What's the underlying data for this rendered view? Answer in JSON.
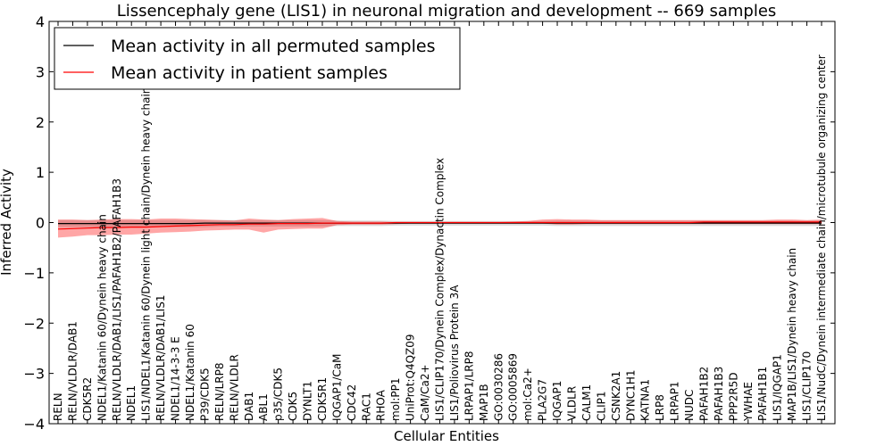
{
  "chart_data": {
    "type": "line",
    "title": "Lissencephaly gene (LIS1) in neuronal migration and development -- 669 samples",
    "xlabel": "Cellular Entities",
    "ylabel": "Inferred Activity",
    "ylim": [
      -4,
      4
    ],
    "yticks": [
      -4,
      -3,
      -2,
      -1,
      0,
      1,
      2,
      3,
      4
    ],
    "categories": [
      "RELN",
      "RELN/VLDLR/DAB1",
      "CDK5R2",
      "NDEL1/Katanin 60/Dynein heavy chain",
      "RELN/VLDLR/DAB1/LIS1/PAFAH1B2/PAFAH1B3",
      "NDEL1",
      "LIS1/NDEL1/Katanin 60/Dynein light chain/Dynein heavy chain",
      "RELN/VLDLR/DAB1/LIS1",
      "NDEL1/14-3-3 E",
      "NDEL1/Katanin 60",
      "P39/CDK5",
      "RELN/LRP8",
      "RELN/VLDLR",
      "DAB1",
      "ABL1",
      "p35/CDK5",
      "CDK5",
      "DYNLT1",
      "CDK5R1",
      "IQGAP1/CaM",
      "CDC42",
      "RAC1",
      "RHOA",
      "mol:PP1",
      "UniProt:Q4QZ09",
      "CaM/Ca2+",
      "LIS1/CLIP170/Dynein Complex/Dynactin Complex",
      "LIS1/Poliovirus Protein 3A",
      "LRPAP1/LRP8",
      "MAP1B",
      "GO:0030286",
      "GO:0005869",
      "mol:Ca2+",
      "PLA2G7",
      "IQGAP1",
      "VLDLR",
      "CALM1",
      "CLIP1",
      "CSNK2A1",
      "DYNC1H1",
      "KATNA1",
      "LRP8",
      "LRPAP1",
      "NUDC",
      "PAFAH1B2",
      "PAFAH1B3",
      "PPP2R5D",
      "YWHAE",
      "PAFAH1B1",
      "LIS1/IQGAP1",
      "MAP1B/LIS1/Dynein heavy chain",
      "LIS1/CLIP170",
      "LIS1/NudC/Dynein intermediate chain/microtubule organizing center"
    ],
    "series": [
      {
        "name": "Mean activity in all permuted samples",
        "color": "#000000",
        "values": [
          -0.02,
          -0.02,
          -0.02,
          -0.02,
          -0.02,
          -0.02,
          -0.02,
          -0.02,
          -0.02,
          -0.02,
          -0.01,
          -0.01,
          -0.01,
          -0.01,
          -0.01,
          -0.01,
          -0.01,
          -0.01,
          -0.01,
          -0.01,
          -0.01,
          -0.01,
          -0.01,
          -0.01,
          -0.01,
          -0.01,
          -0.01,
          -0.01,
          -0.01,
          -0.01,
          -0.01,
          -0.01,
          -0.01,
          -0.01,
          -0.01,
          -0.01,
          -0.01,
          -0.01,
          -0.01,
          -0.01,
          -0.01,
          -0.01,
          -0.01,
          -0.01,
          -0.01,
          -0.01,
          -0.01,
          -0.01,
          -0.01,
          -0.01,
          -0.01,
          -0.01,
          -0.01
        ],
        "lower": [
          -0.09,
          -0.09,
          -0.09,
          -0.09,
          -0.09,
          -0.09,
          -0.09,
          -0.09,
          -0.09,
          -0.09,
          -0.09,
          -0.08,
          -0.08,
          -0.08,
          -0.08,
          -0.08,
          -0.08,
          -0.08,
          -0.08,
          -0.07,
          -0.07,
          -0.07,
          -0.07,
          -0.06,
          -0.06,
          -0.06,
          -0.06,
          -0.06,
          -0.06,
          -0.06,
          -0.06,
          -0.06,
          -0.06,
          -0.06,
          -0.07,
          -0.07,
          -0.07,
          -0.07,
          -0.07,
          -0.07,
          -0.07,
          -0.07,
          -0.07,
          -0.07,
          -0.07,
          -0.07,
          -0.07,
          -0.07,
          -0.07,
          -0.07,
          -0.07,
          -0.07,
          -0.07
        ],
        "upper": [
          0.05,
          0.05,
          0.05,
          0.05,
          0.05,
          0.05,
          0.05,
          0.05,
          0.05,
          0.05,
          0.05,
          0.05,
          0.05,
          0.05,
          0.05,
          0.05,
          0.05,
          0.05,
          0.05,
          0.04,
          0.04,
          0.04,
          0.04,
          0.03,
          0.03,
          0.03,
          0.03,
          0.03,
          0.03,
          0.03,
          0.03,
          0.03,
          0.03,
          0.03,
          0.04,
          0.04,
          0.04,
          0.04,
          0.04,
          0.04,
          0.04,
          0.04,
          0.04,
          0.04,
          0.04,
          0.04,
          0.04,
          0.04,
          0.04,
          0.04,
          0.04,
          0.04,
          0.04
        ]
      },
      {
        "name": "Mean activity in patient samples",
        "color": "#ff0000",
        "values": [
          -0.13,
          -0.12,
          -0.11,
          -0.1,
          -0.1,
          -0.09,
          -0.09,
          -0.08,
          -0.07,
          -0.06,
          -0.05,
          -0.04,
          -0.04,
          -0.03,
          -0.03,
          -0.02,
          -0.02,
          -0.02,
          -0.01,
          -0.01,
          -0.01,
          -0.01,
          -0.01,
          0.0,
          0.0,
          0.0,
          0.0,
          0.0,
          0.0,
          0.0,
          0.0,
          0.0,
          0.0,
          0.0,
          0.0,
          0.0,
          0.0,
          0.0,
          0.0,
          0.0,
          0.0,
          0.0,
          0.0,
          0.0,
          0.01,
          0.01,
          0.01,
          0.01,
          0.01,
          0.01,
          0.01,
          0.01,
          0.01
        ],
        "lower": [
          -0.3,
          -0.28,
          -0.25,
          -0.25,
          -0.24,
          -0.24,
          -0.22,
          -0.2,
          -0.19,
          -0.18,
          -0.16,
          -0.15,
          -0.14,
          -0.14,
          -0.2,
          -0.14,
          -0.13,
          -0.12,
          -0.12,
          -0.05,
          -0.04,
          -0.04,
          -0.04,
          -0.03,
          -0.02,
          -0.02,
          -0.02,
          -0.02,
          -0.02,
          -0.02,
          -0.02,
          -0.02,
          -0.02,
          -0.02,
          -0.04,
          -0.04,
          -0.03,
          -0.03,
          -0.03,
          -0.03,
          -0.03,
          -0.03,
          -0.03,
          -0.03,
          -0.03,
          -0.03,
          -0.03,
          -0.03,
          -0.03,
          -0.03,
          -0.03,
          -0.03,
          -0.03
        ],
        "upper": [
          0.06,
          0.06,
          0.05,
          0.06,
          0.07,
          0.07,
          0.06,
          0.08,
          0.08,
          0.07,
          0.06,
          0.05,
          0.04,
          0.08,
          0.06,
          0.05,
          0.07,
          0.08,
          0.09,
          0.03,
          0.02,
          0.02,
          0.02,
          0.01,
          0.01,
          0.01,
          0.01,
          0.01,
          0.01,
          0.01,
          0.01,
          0.02,
          0.03,
          0.06,
          0.07,
          0.06,
          0.06,
          0.05,
          0.05,
          0.05,
          0.05,
          0.05,
          0.05,
          0.05,
          0.05,
          0.05,
          0.05,
          0.05,
          0.05,
          0.06,
          0.06,
          0.05,
          0.06
        ]
      }
    ],
    "legend_position": "top-left",
    "grid": false
  }
}
